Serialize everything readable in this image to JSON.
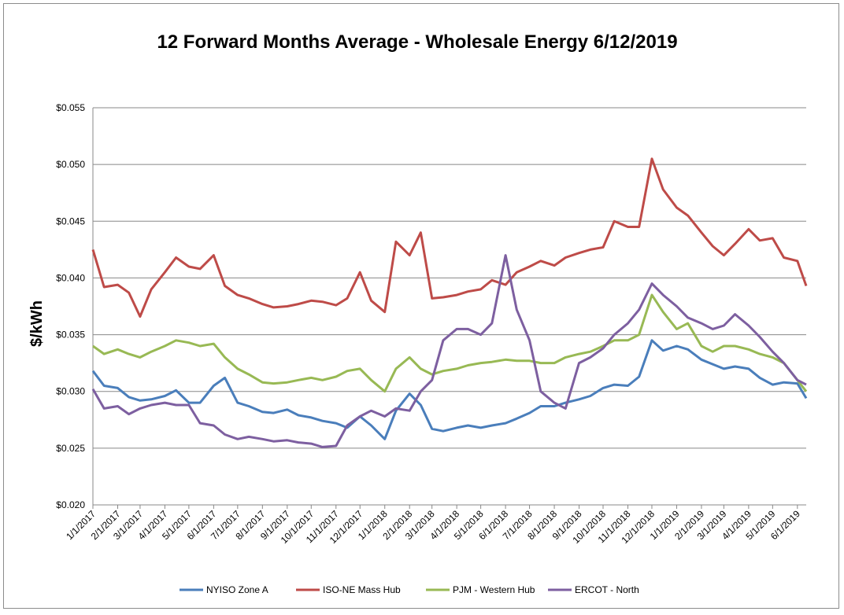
{
  "chart_data": {
    "type": "line",
    "title": "12 Forward Months Average - Wholesale Energy 6/12/2019",
    "ylabel": "$/kWh",
    "xlabel": "",
    "ylim": [
      0.02,
      0.055
    ],
    "y_ticks": [
      "$0.020",
      "$0.025",
      "$0.030",
      "$0.035",
      "$0.040",
      "$0.045",
      "$0.050",
      "$0.055"
    ],
    "x_ticks": [
      "1/1/2017",
      "2/1/2017",
      "3/1/2017",
      "4/1/2017",
      "5/1/2017",
      "6/1/2017",
      "7/1/2017",
      "8/1/2017",
      "9/1/2017",
      "10/1/2017",
      "11/1/2017",
      "12/1/2017",
      "1/1/2018",
      "2/1/2018",
      "3/1/2018",
      "4/1/2018",
      "5/1/2018",
      "6/1/2018",
      "7/1/2018",
      "8/1/2018",
      "9/1/2018",
      "10/1/2018",
      "11/1/2018",
      "12/1/2018",
      "1/1/2019",
      "2/1/2019",
      "3/1/2019",
      "4/1/2019",
      "5/1/2019",
      "6/1/2019"
    ],
    "grid": true,
    "legend_position": "bottom",
    "x": [
      "2017-01-01",
      "2017-01-15",
      "2017-02-01",
      "2017-02-15",
      "2017-03-01",
      "2017-03-15",
      "2017-04-01",
      "2017-04-15",
      "2017-05-01",
      "2017-05-15",
      "2017-06-01",
      "2017-06-15",
      "2017-07-01",
      "2017-07-15",
      "2017-08-01",
      "2017-08-15",
      "2017-09-01",
      "2017-09-15",
      "2017-10-01",
      "2017-10-15",
      "2017-11-01",
      "2017-11-15",
      "2017-12-01",
      "2017-12-15",
      "2018-01-01",
      "2018-01-15",
      "2018-02-01",
      "2018-02-15",
      "2018-03-01",
      "2018-03-15",
      "2018-04-01",
      "2018-04-15",
      "2018-05-01",
      "2018-05-15",
      "2018-06-01",
      "2018-06-15",
      "2018-07-01",
      "2018-07-15",
      "2018-08-01",
      "2018-08-15",
      "2018-09-01",
      "2018-09-15",
      "2018-10-01",
      "2018-10-15",
      "2018-11-01",
      "2018-11-15",
      "2018-12-01",
      "2018-12-15",
      "2019-01-01",
      "2019-01-15",
      "2019-02-01",
      "2019-02-15",
      "2019-03-01",
      "2019-03-15",
      "2019-04-01",
      "2019-04-15",
      "2019-05-01",
      "2019-05-15",
      "2019-06-01",
      "2019-06-12"
    ],
    "series": [
      {
        "name": "NYISO Zone A",
        "color": "#4a7ebb",
        "values": [
          0.0318,
          0.0305,
          0.0303,
          0.0295,
          0.0292,
          0.0293,
          0.0296,
          0.0301,
          0.029,
          0.029,
          0.0305,
          0.0312,
          0.029,
          0.0287,
          0.0282,
          0.0281,
          0.0284,
          0.0279,
          0.0277,
          0.0274,
          0.0272,
          0.0268,
          0.0278,
          0.027,
          0.0258,
          0.0283,
          0.0298,
          0.0288,
          0.0267,
          0.0265,
          0.0268,
          0.027,
          0.0268,
          0.027,
          0.0272,
          0.0276,
          0.0281,
          0.0287,
          0.0287,
          0.029,
          0.0293,
          0.0296,
          0.0303,
          0.0306,
          0.0305,
          0.0313,
          0.0345,
          0.0336,
          0.034,
          0.0337,
          0.0328,
          0.0324,
          0.032,
          0.0322,
          0.032,
          0.0312,
          0.0306,
          0.0308,
          0.0307,
          0.0294
        ]
      },
      {
        "name": "ISO-NE Mass Hub",
        "color": "#be4b48",
        "values": [
          0.0425,
          0.0392,
          0.0394,
          0.0387,
          0.0366,
          0.039,
          0.0405,
          0.0418,
          0.041,
          0.0408,
          0.042,
          0.0393,
          0.0385,
          0.0382,
          0.0377,
          0.0374,
          0.0375,
          0.0377,
          0.038,
          0.0379,
          0.0376,
          0.0382,
          0.0405,
          0.038,
          0.037,
          0.0432,
          0.042,
          0.044,
          0.0382,
          0.0383,
          0.0385,
          0.0388,
          0.039,
          0.0398,
          0.0394,
          0.0405,
          0.041,
          0.0415,
          0.0411,
          0.0418,
          0.0422,
          0.0425,
          0.0427,
          0.045,
          0.0445,
          0.0445,
          0.0505,
          0.0478,
          0.0462,
          0.0455,
          0.044,
          0.0428,
          0.042,
          0.043,
          0.0443,
          0.0433,
          0.0435,
          0.0418,
          0.0415,
          0.0393
        ]
      },
      {
        "name": "PJM - Western Hub",
        "color": "#98b954",
        "values": [
          0.034,
          0.0333,
          0.0337,
          0.0333,
          0.033,
          0.0335,
          0.034,
          0.0345,
          0.0343,
          0.034,
          0.0342,
          0.033,
          0.032,
          0.0315,
          0.0308,
          0.0307,
          0.0308,
          0.031,
          0.0312,
          0.031,
          0.0313,
          0.0318,
          0.032,
          0.031,
          0.03,
          0.032,
          0.033,
          0.032,
          0.0315,
          0.0318,
          0.032,
          0.0323,
          0.0325,
          0.0326,
          0.0328,
          0.0327,
          0.0327,
          0.0325,
          0.0325,
          0.033,
          0.0333,
          0.0335,
          0.034,
          0.0345,
          0.0345,
          0.035,
          0.0385,
          0.037,
          0.0355,
          0.036,
          0.034,
          0.0335,
          0.034,
          0.034,
          0.0337,
          0.0333,
          0.033,
          0.0325,
          0.031,
          0.03
        ]
      },
      {
        "name": "ERCOT - North",
        "color": "#7d5fa0",
        "values": [
          0.0302,
          0.0285,
          0.0287,
          0.028,
          0.0285,
          0.0288,
          0.029,
          0.0288,
          0.0288,
          0.0272,
          0.027,
          0.0262,
          0.0258,
          0.026,
          0.0258,
          0.0256,
          0.0257,
          0.0255,
          0.0254,
          0.0251,
          0.0252,
          0.027,
          0.0278,
          0.0283,
          0.0278,
          0.0285,
          0.0283,
          0.03,
          0.031,
          0.0345,
          0.0355,
          0.0355,
          0.035,
          0.036,
          0.042,
          0.0372,
          0.0345,
          0.03,
          0.029,
          0.0285,
          0.0325,
          0.033,
          0.0338,
          0.035,
          0.036,
          0.0372,
          0.0395,
          0.0385,
          0.0375,
          0.0365,
          0.036,
          0.0355,
          0.0358,
          0.0368,
          0.0358,
          0.0348,
          0.0335,
          0.0325,
          0.031,
          0.0306
        ]
      }
    ]
  }
}
